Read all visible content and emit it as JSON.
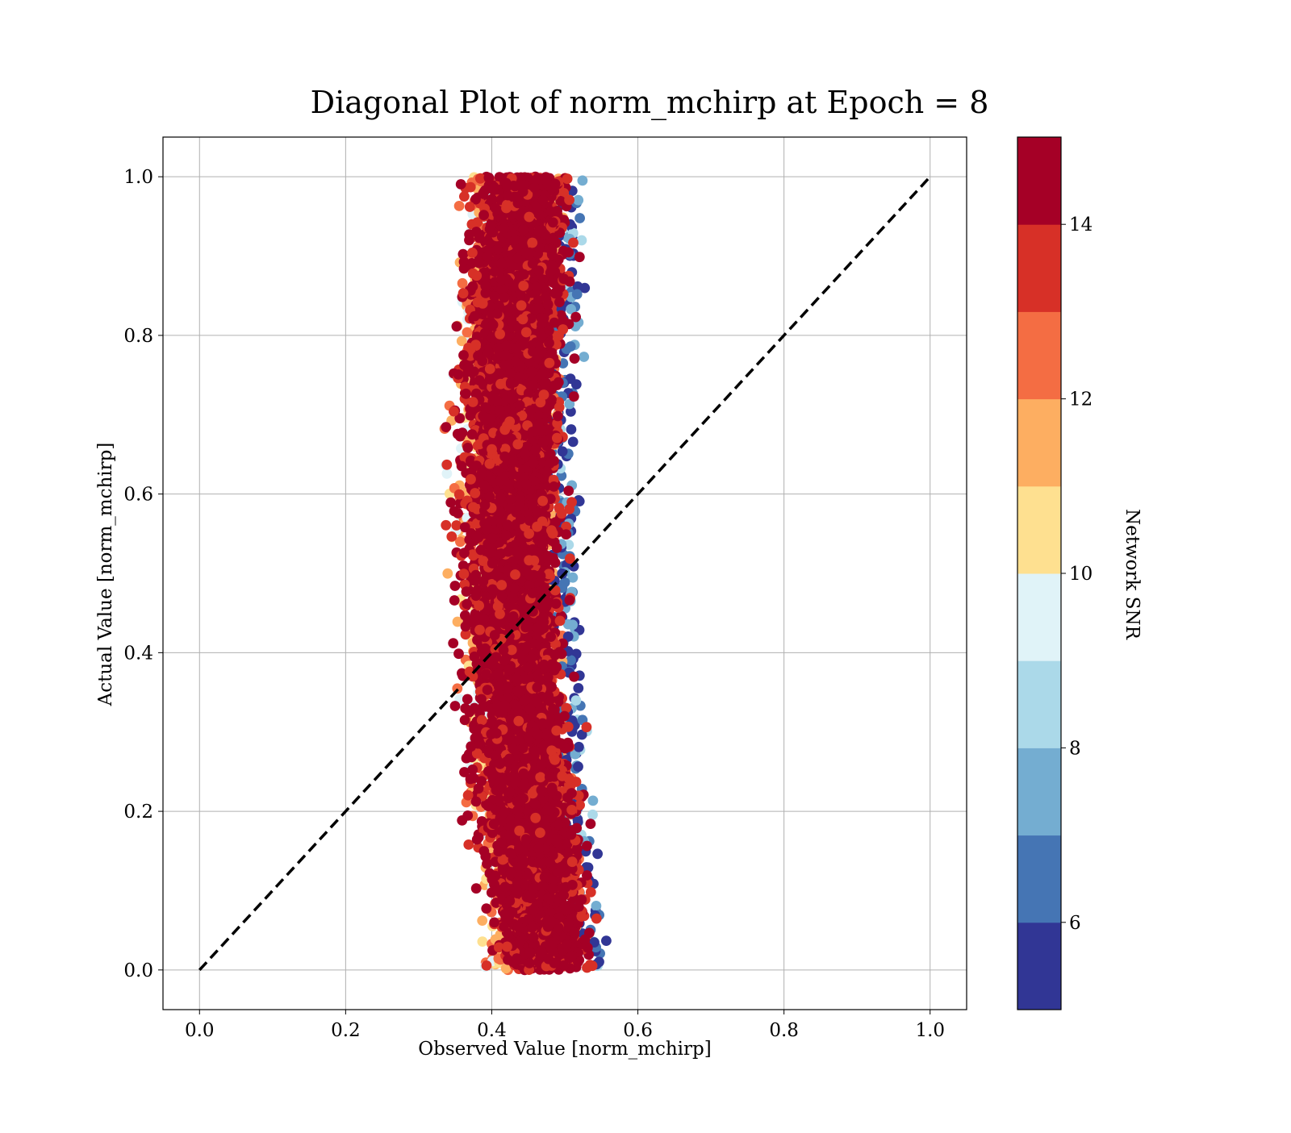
{
  "chart_data": {
    "type": "scatter",
    "title": "Diagonal Plot of norm_mchirp at Epoch = 8",
    "xlabel": "Observed Value [norm_mchirp]",
    "ylabel": "Actual Value [norm_mchirp]",
    "xlim": [
      -0.05,
      1.05
    ],
    "ylim": [
      -0.05,
      1.05
    ],
    "xticks": [
      0.0,
      0.2,
      0.4,
      0.6,
      0.8,
      1.0
    ],
    "yticks": [
      0.0,
      0.2,
      0.4,
      0.6,
      0.8,
      1.0
    ],
    "xtick_labels": [
      "0.0",
      "0.2",
      "0.4",
      "0.6",
      "0.8",
      "1.0"
    ],
    "ytick_labels": [
      "0.0",
      "0.2",
      "0.4",
      "0.6",
      "0.8",
      "1.0"
    ],
    "grid": true,
    "reference_line": {
      "style": "dashed",
      "color": "#000000",
      "points": [
        [
          0.0,
          0.0
        ],
        [
          1.0,
          1.0
        ]
      ]
    },
    "colorbar": {
      "label": "Network SNR",
      "range": [
        5,
        15
      ],
      "ticks": [
        6,
        8,
        10,
        12,
        14
      ],
      "tick_labels": [
        "6",
        "8",
        "10",
        "12",
        "14"
      ],
      "colors": [
        "#313695",
        "#4575b4",
        "#74add1",
        "#abd9e9",
        "#e0f3f8",
        "#fee090",
        "#fdae61",
        "#f46d43",
        "#d73027",
        "#a50026"
      ],
      "colormap": "RdYlBu_r"
    },
    "point_cloud": {
      "description_of_distribution": "vertical band",
      "x_center_at_y0": 0.475,
      "x_center_at_y1": 0.445,
      "x_halfwidth": 0.085,
      "y_range": [
        0.0,
        1.0
      ],
      "high_snr_core_halfwidth": 0.045
    }
  }
}
